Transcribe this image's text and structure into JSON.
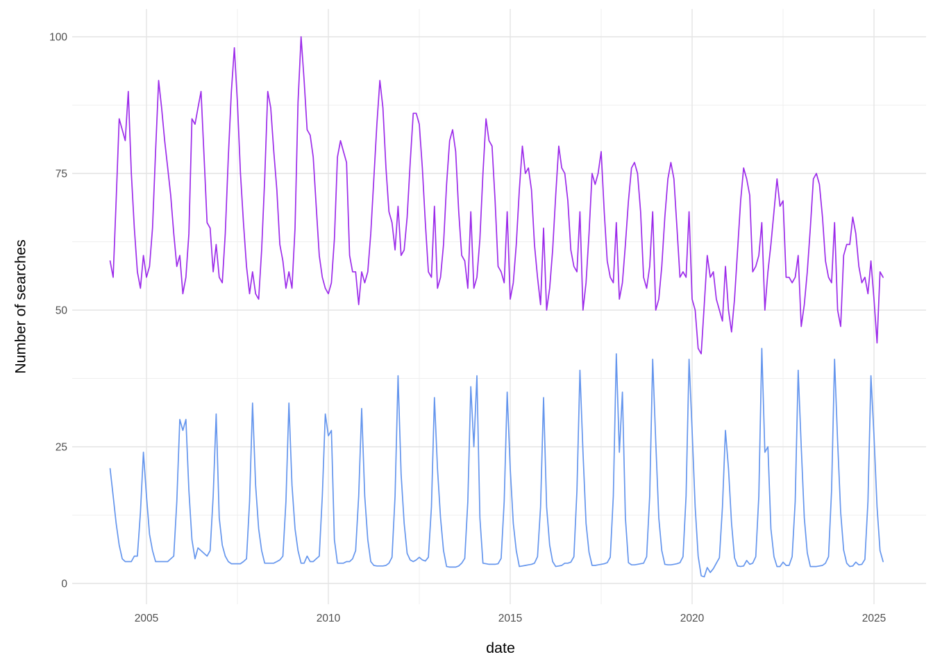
{
  "chart_data": {
    "type": "line",
    "title": "",
    "xlabel": "date",
    "ylabel": "Number of searches",
    "x_start": "2004-01",
    "x_end": "2025-04",
    "frequency": "monthly",
    "x_ticks": [
      2005,
      2010,
      2015,
      2020,
      2025
    ],
    "x_tick_labels": [
      "2005",
      "2010",
      "2015",
      "2020",
      "2025"
    ],
    "x_minor_ticks": [
      2007.5,
      2012.5,
      2017.5,
      2022.5
    ],
    "y_ticks": [
      0,
      25,
      50,
      75,
      100
    ],
    "y_tick_labels": [
      "0",
      "25",
      "50",
      "75",
      "100"
    ],
    "y_minor_ticks": [
      12.5,
      37.5,
      62.5,
      87.5
    ],
    "ylim": [
      -4,
      105
    ],
    "grid": true,
    "legend": false,
    "background": "#ffffff",
    "grid_major_color": "#e4e4e4",
    "grid_minor_color": "#efefef",
    "tick_label_color": "#4d4d4d",
    "series": [
      {
        "name": "series-1-purple",
        "color": "#9c2bea",
        "values": [
          59,
          56,
          70,
          85,
          83,
          81,
          90,
          75,
          65,
          57,
          54,
          60,
          56,
          58,
          65,
          79,
          92,
          87,
          81,
          76,
          71,
          64,
          58,
          60,
          53,
          56,
          64,
          85,
          84,
          87,
          90,
          78,
          66,
          65,
          57,
          62,
          56,
          55,
          64,
          78,
          90,
          98,
          88,
          75,
          66,
          58,
          53,
          57,
          53,
          52,
          61,
          74,
          90,
          87,
          79,
          72,
          62,
          59,
          54,
          57,
          54,
          65,
          88,
          100,
          92,
          83,
          82,
          78,
          69,
          60,
          56,
          54,
          53,
          55,
          63,
          78,
          81,
          79,
          77,
          60,
          57,
          57,
          51,
          57,
          55,
          57,
          64,
          74,
          84,
          92,
          87,
          76,
          68,
          66,
          61,
          69,
          60,
          61,
          67,
          77,
          86,
          86,
          84,
          76,
          66,
          57,
          56,
          69,
          54,
          56,
          62,
          73,
          81,
          83,
          79,
          68,
          60,
          59,
          54,
          68,
          54,
          56,
          63,
          75,
          85,
          81,
          80,
          70,
          58,
          57,
          55,
          68,
          52,
          55,
          62,
          72,
          80,
          75,
          76,
          72,
          62,
          56,
          51,
          65,
          50,
          54,
          61,
          71,
          80,
          76,
          75,
          70,
          61,
          58,
          57,
          68,
          50,
          55,
          64,
          75,
          73,
          75,
          79,
          68,
          59,
          56,
          55,
          66,
          52,
          55,
          62,
          70,
          76,
          77,
          75,
          68,
          56,
          54,
          58,
          68,
          50,
          52,
          58,
          67,
          74,
          77,
          74,
          65,
          56,
          57,
          56,
          68,
          52,
          50,
          43,
          42,
          51,
          60,
          56,
          57,
          52,
          50,
          48,
          58,
          50,
          46,
          52,
          61,
          70,
          76,
          74,
          71,
          57,
          58,
          60,
          66,
          50,
          57,
          62,
          68,
          74,
          69,
          70,
          56,
          56,
          55,
          56,
          60,
          47,
          51,
          57,
          65,
          74,
          75,
          73,
          67,
          59,
          56,
          55,
          66,
          50,
          47,
          60,
          62,
          62,
          67,
          64,
          58,
          55,
          56,
          53,
          59,
          52,
          44,
          57,
          56
        ]
      },
      {
        "name": "series-2-blue",
        "color": "#6495ed",
        "values": [
          21,
          16,
          11,
          7,
          4.5,
          4,
          4,
          4,
          5,
          5,
          13,
          24,
          16,
          9,
          6,
          4,
          4,
          4,
          4,
          4,
          4.5,
          5,
          15,
          30,
          28,
          30,
          17,
          8,
          4.5,
          6.5,
          6,
          5.5,
          5,
          6,
          16,
          31,
          12,
          7,
          5,
          4,
          3.6,
          3.6,
          3.6,
          3.6,
          4,
          4.5,
          15,
          33,
          18,
          10,
          6,
          3.7,
          3.7,
          3.7,
          3.7,
          4,
          4.3,
          5,
          15,
          33,
          18,
          10,
          6,
          3.7,
          3.7,
          5,
          4,
          4,
          4.5,
          5,
          16,
          31,
          27,
          28,
          8,
          3.7,
          3.7,
          3.7,
          4,
          4,
          4.5,
          6,
          16,
          32,
          16,
          8,
          4,
          3.3,
          3.2,
          3.2,
          3.2,
          3.3,
          3.7,
          4.8,
          16,
          38,
          20,
          11,
          5.5,
          4.3,
          4,
          4.3,
          4.8,
          4.3,
          4.1,
          4.8,
          14,
          34,
          21,
          12,
          6,
          3.1,
          3,
          3,
          3,
          3.2,
          3.7,
          4.6,
          15,
          36,
          25,
          38,
          12,
          3.7,
          3.6,
          3.5,
          3.5,
          3.5,
          3.6,
          4.6,
          15,
          35,
          21,
          11,
          6,
          3.1,
          3.2,
          3.3,
          3.4,
          3.5,
          3.7,
          4.9,
          14,
          34,
          14,
          7,
          4,
          3.1,
          3.2,
          3.3,
          3.7,
          3.7,
          3.9,
          4.9,
          17,
          39,
          24,
          11,
          5.7,
          3.3,
          3.3,
          3.4,
          3.5,
          3.6,
          3.8,
          4.8,
          16,
          42,
          24,
          35,
          12,
          3.8,
          3.4,
          3.4,
          3.5,
          3.6,
          3.7,
          4.9,
          16,
          41,
          26,
          12,
          6,
          3.5,
          3.4,
          3.4,
          3.5,
          3.6,
          3.8,
          4.9,
          16,
          41,
          28,
          14,
          5,
          1.4,
          1.2,
          2.9,
          2,
          2.7,
          3.7,
          4.7,
          14,
          28,
          21,
          11,
          4.7,
          3.2,
          3.1,
          3.2,
          4.2,
          3.5,
          3.7,
          4.9,
          16,
          43,
          24,
          25,
          10,
          4.9,
          3.1,
          3.1,
          3.9,
          3.3,
          3.3,
          4.9,
          15,
          39,
          25,
          12,
          5.6,
          3.1,
          3.1,
          3.1,
          3.2,
          3.3,
          3.7,
          4.9,
          17,
          41,
          26,
          13,
          6.1,
          3.7,
          3.1,
          3.2,
          3.9,
          3.4,
          3.5,
          4.4,
          15,
          38,
          27,
          14,
          6,
          4
        ]
      }
    ]
  }
}
